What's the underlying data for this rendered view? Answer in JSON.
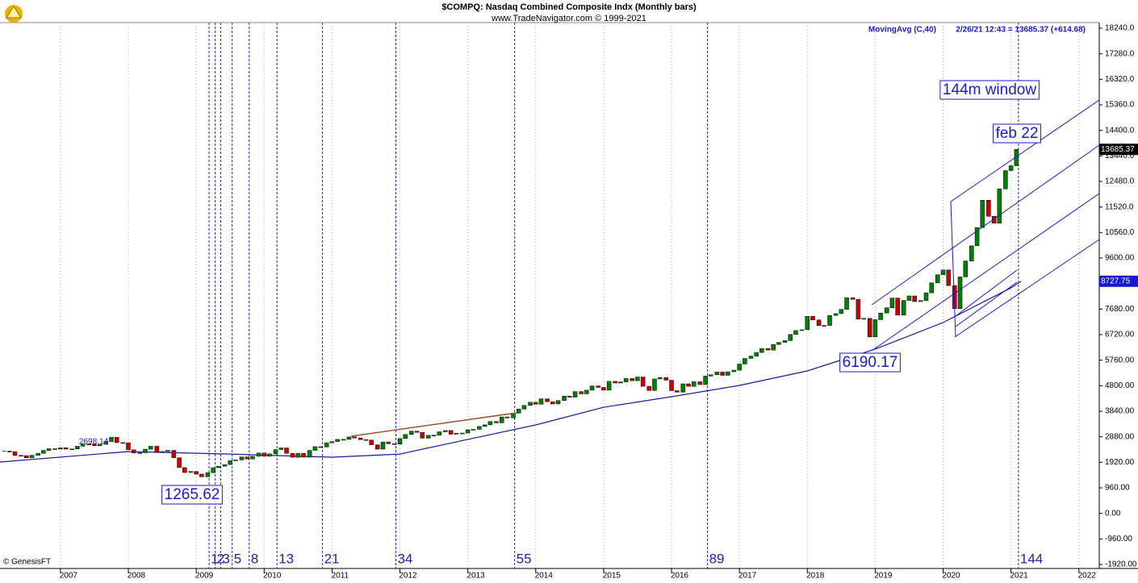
{
  "chart_data": {
    "type": "candlestick",
    "title": "$COMPQ:  Nasdaq Combined Composite Indx  (Monthly bars)",
    "subtitle": "www.TradeNavigator.com © 1999-2021",
    "indicator_label": "MovingAvg (C,40)",
    "quote_label": "2/26/21 12:43 = 13685.37 (+614.68)",
    "credit": "© GenesisFT",
    "xlim": [
      2006.11,
      2022.3
    ],
    "ylim": [
      -1920,
      18240
    ],
    "xticks": [
      2007,
      2008,
      2009,
      2010,
      2011,
      2012,
      2013,
      2014,
      2015,
      2016,
      2017,
      2018,
      2019,
      2020,
      2021,
      2022
    ],
    "yticks": [
      {
        "value": 18240,
        "label": "18240.0"
      },
      {
        "value": 17280,
        "label": "17280.0"
      },
      {
        "value": 16320,
        "label": "16320.0"
      },
      {
        "value": 15360,
        "label": "15360.0"
      },
      {
        "value": 14400,
        "label": "14400.0"
      },
      {
        "value": 13440,
        "label": "13440.0"
      },
      {
        "value": 12480,
        "label": "12480.0"
      },
      {
        "value": 11520,
        "label": "11520.0"
      },
      {
        "value": 10560,
        "label": "10560.0"
      },
      {
        "value": 9600,
        "label": "9600.00"
      },
      {
        "value": 8640,
        "label": "8640.00"
      },
      {
        "value": 7680,
        "label": "7680.00"
      },
      {
        "value": 6720,
        "label": "6720.00"
      },
      {
        "value": 5760,
        "label": "5760.00"
      },
      {
        "value": 4800,
        "label": "4800.00"
      },
      {
        "value": 3840,
        "label": "3840.00"
      },
      {
        "value": 2880,
        "label": "2880.00"
      },
      {
        "value": 1920,
        "label": "1920.00"
      },
      {
        "value": 960,
        "label": "960.00"
      },
      {
        "value": 0,
        "label": "0.00"
      },
      {
        "value": -960,
        "label": "-960.00"
      },
      {
        "value": -1920,
        "label": "-1920.00"
      }
    ],
    "x": [
      2006.17,
      2006.25,
      2006.33,
      2006.42,
      2006.5,
      2006.58,
      2006.67,
      2006.75,
      2006.83,
      2006.92,
      2007.0,
      2007.08,
      2007.17,
      2007.25,
      2007.33,
      2007.42,
      2007.5,
      2007.58,
      2007.67,
      2007.75,
      2007.83,
      2007.92,
      2008.0,
      2008.08,
      2008.17,
      2008.25,
      2008.33,
      2008.42,
      2008.5,
      2008.58,
      2008.67,
      2008.75,
      2008.83,
      2008.92,
      2009.0,
      2009.08,
      2009.17,
      2009.25,
      2009.33,
      2009.42,
      2009.5,
      2009.58,
      2009.67,
      2009.75,
      2009.83,
      2009.92,
      2010.0,
      2010.08,
      2010.17,
      2010.25,
      2010.33,
      2010.42,
      2010.5,
      2010.58,
      2010.67,
      2010.75,
      2010.83,
      2010.92,
      2011.0,
      2011.08,
      2011.17,
      2011.25,
      2011.33,
      2011.42,
      2011.5,
      2011.58,
      2011.67,
      2011.75,
      2011.83,
      2011.92,
      2012.0,
      2012.08,
      2012.17,
      2012.25,
      2012.33,
      2012.42,
      2012.5,
      2012.58,
      2012.67,
      2012.75,
      2012.83,
      2012.92,
      2013.0,
      2013.08,
      2013.17,
      2013.25,
      2013.33,
      2013.42,
      2013.5,
      2013.58,
      2013.67,
      2013.75,
      2013.83,
      2013.92,
      2014.0,
      2014.08,
      2014.17,
      2014.25,
      2014.33,
      2014.42,
      2014.5,
      2014.58,
      2014.67,
      2014.75,
      2014.83,
      2014.92,
      2015.0,
      2015.08,
      2015.17,
      2015.25,
      2015.33,
      2015.42,
      2015.5,
      2015.58,
      2015.67,
      2015.75,
      2015.83,
      2015.92,
      2016.0,
      2016.08,
      2016.17,
      2016.25,
      2016.33,
      2016.42,
      2016.5,
      2016.58,
      2016.67,
      2016.75,
      2016.83,
      2016.92,
      2017.0,
      2017.08,
      2017.17,
      2017.25,
      2017.33,
      2017.42,
      2017.5,
      2017.58,
      2017.67,
      2017.75,
      2017.83,
      2017.92,
      2018.0,
      2018.08,
      2018.17,
      2018.25,
      2018.33,
      2018.42,
      2018.5,
      2018.58,
      2018.67,
      2018.75,
      2018.83,
      2018.92,
      2019.0,
      2019.08,
      2019.17,
      2019.25,
      2019.33,
      2019.42,
      2019.5,
      2019.58,
      2019.67,
      2019.75,
      2019.83,
      2019.92,
      2020.0,
      2020.08,
      2020.17,
      2020.25,
      2020.33,
      2020.42,
      2020.5,
      2020.58,
      2020.67,
      2020.75,
      2020.83,
      2020.92,
      2021.0,
      2021.08
    ],
    "series": [
      {
        "name": "$COMPQ",
        "up_color": "#008000",
        "down_color": "#cc0000",
        "values": [
          2340,
          2323,
          2179,
          2172,
          2091,
          2184,
          2258,
          2367,
          2432,
          2415,
          2464,
          2416,
          2422,
          2525,
          2605,
          2603,
          2546,
          2596,
          2701,
          2859,
          2661,
          2652,
          2390,
          2271,
          2279,
          2413,
          2523,
          2293,
          2326,
          2368,
          2092,
          1721,
          1536,
          1577,
          1476,
          1377,
          1529,
          1717,
          1774,
          1835,
          1979,
          2009,
          2122,
          2045,
          2145,
          2269,
          2147,
          2238,
          2398,
          2461,
          2257,
          2109,
          2255,
          2114,
          2369,
          2507,
          2498,
          2653,
          2700,
          2782,
          2781,
          2874,
          2835,
          2774,
          2756,
          2579,
          2415,
          2684,
          2620,
          2605,
          2814,
          2967,
          3092,
          3046,
          2827,
          2935,
          2940,
          3067,
          3116,
          2977,
          3010,
          3020,
          3142,
          3160,
          3268,
          3329,
          3456,
          3403,
          3626,
          3590,
          3771,
          3920,
          4060,
          4177,
          4104,
          4308,
          4199,
          4115,
          4243,
          4408,
          4370,
          4580,
          4493,
          4631,
          4792,
          4736,
          4635,
          4964,
          4901,
          4941,
          5070,
          4987,
          5128,
          4777,
          4620,
          5054,
          5109,
          5007,
          4614,
          4558,
          4870,
          4775,
          4948,
          4843,
          5162,
          5213,
          5312,
          5189,
          5324,
          5383,
          5615,
          5825,
          5912,
          6048,
          6199,
          6140,
          6348,
          6429,
          6496,
          6728,
          6874,
          6903,
          7411,
          7273,
          7063,
          7066,
          7442,
          7510,
          7672,
          8110,
          8046,
          7306,
          7331,
          6635,
          7282,
          7533,
          7729,
          8095,
          7453,
          8006,
          8175,
          7963,
          7999,
          8292,
          8665,
          8973,
          9151,
          8567,
          7700,
          8890,
          9490,
          10059,
          10745,
          11775,
          11168,
          10912,
          12199,
          12888,
          13070,
          13685
        ]
      }
    ],
    "moving_average": {
      "color": "#1a1a99",
      "x": [
        2006.11,
        2008.0,
        2009.5,
        2011.0,
        2012.0,
        2013.0,
        2014.0,
        2015.0,
        2016.0,
        2017.0,
        2018.0,
        2019.0,
        2020.0,
        2021.0,
        2021.15
      ],
      "values": [
        1930,
        2324,
        2230,
        2111,
        2230,
        2780,
        3325,
        3990,
        4386,
        4810,
        5356,
        6175,
        7175,
        8480,
        8727.75
      ]
    },
    "last_price": 13685.37,
    "ma_last": 8727.75,
    "peak_label": 2698.14,
    "swing_labels": [
      1265.62,
      6190.17
    ],
    "notes": [
      "144m window",
      "feb 22"
    ],
    "cycle_lines": {
      "color": "#2222aa",
      "x": [
        2009.19,
        2009.28,
        2009.36,
        2009.53,
        2009.78,
        2010.19,
        2010.86,
        2011.94,
        2013.69,
        2016.53,
        2021.11
      ],
      "labels": [
        1,
        2,
        3,
        5,
        8,
        13,
        21,
        34,
        55,
        89,
        144
      ]
    }
  }
}
